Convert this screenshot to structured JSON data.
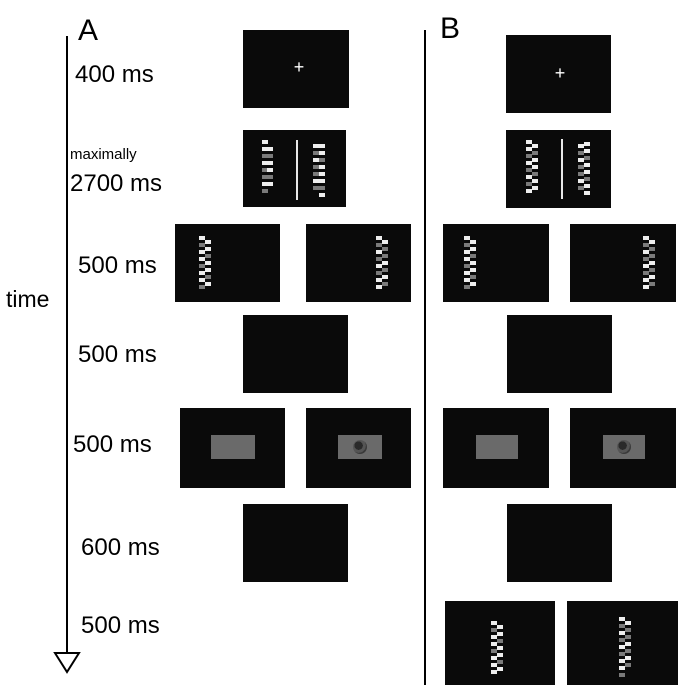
{
  "panels": {
    "a": "A",
    "b": "B"
  },
  "axis_label": "time",
  "fixation_symbol": "+",
  "steps": [
    {
      "id": "fixation",
      "line1": "",
      "line2": "400 ms"
    },
    {
      "id": "preview",
      "line1": "maximally",
      "line2": "2700 ms"
    },
    {
      "id": "cue",
      "line1": "",
      "line2": "500 ms"
    },
    {
      "id": "blank1",
      "line1": "",
      "line2": "500 ms"
    },
    {
      "id": "target",
      "line1": "",
      "line2": "500 ms"
    },
    {
      "id": "blank2",
      "line1": "",
      "line2": "600 ms"
    },
    {
      "id": "probe",
      "line1": "",
      "line2": "500 ms"
    }
  ],
  "colors": {
    "screen": "#0a0a0a",
    "stimulus": "#eeeeee",
    "grey_rect": "#6a6a6a"
  }
}
